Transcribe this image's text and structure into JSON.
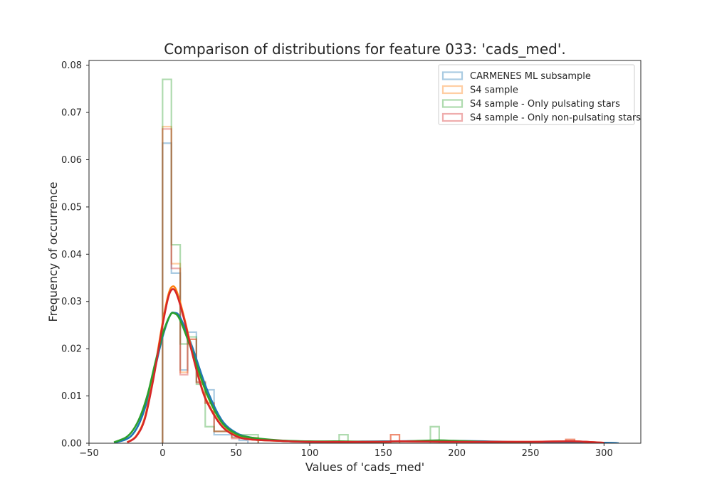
{
  "chart_data": {
    "type": "histogram",
    "title": "Comparison of distributions for feature 033: 'cads_med'.",
    "xlabel": "Values of 'cads_med'",
    "ylabel": "Frequency of occurrence",
    "xlim": [
      -50,
      325
    ],
    "ylim": [
      0,
      0.081
    ],
    "xticks": [
      -50,
      0,
      50,
      100,
      150,
      200,
      250,
      300
    ],
    "yticks": [
      0.0,
      0.01,
      0.02,
      0.03,
      0.04,
      0.05,
      0.06,
      0.07,
      0.08
    ],
    "ytick_labels": [
      "0.00",
      "0.01",
      "0.02",
      "0.03",
      "0.04",
      "0.05",
      "0.06",
      "0.07",
      "0.08"
    ],
    "grid": false,
    "legend_position": "upper right",
    "series": [
      {
        "name": "CARMENES ML subsample",
        "color": "#1f77b4",
        "bins": [
          {
            "x0": 0,
            "x1": 6,
            "y": 0.0635
          },
          {
            "x0": 6,
            "x1": 12,
            "y": 0.036
          },
          {
            "x0": 12,
            "x1": 17,
            "y": 0.0155
          },
          {
            "x0": 17,
            "x1": 23,
            "y": 0.0235
          },
          {
            "x0": 23,
            "x1": 29,
            "y": 0.013
          },
          {
            "x0": 29,
            "x1": 35,
            "y": 0.0113
          },
          {
            "x0": 35,
            "x1": 47,
            "y": 0.0018
          },
          {
            "x0": 47,
            "x1": 52,
            "y": 0.0013
          },
          {
            "x0": 52,
            "x1": 58,
            "y": 0.0006
          }
        ],
        "kde": {
          "x": [
            -33,
            -25,
            -20,
            -15,
            -10,
            -5,
            0,
            5,
            8,
            12,
            20,
            30,
            40,
            50,
            60,
            75,
            100,
            150,
            200,
            250,
            300,
            310
          ],
          "y": [
            0.0001,
            0.0008,
            0.002,
            0.0048,
            0.0095,
            0.016,
            0.0225,
            0.027,
            0.0276,
            0.0266,
            0.0205,
            0.0115,
            0.005,
            0.0022,
            0.0012,
            0.0006,
            0.0003,
            0.0004,
            0.0005,
            0.0002,
            0.0001,
            0.0
          ]
        }
      },
      {
        "name": "S4 sample",
        "color": "#ff7f0e",
        "bins": [
          {
            "x0": 0,
            "x1": 6,
            "y": 0.067
          },
          {
            "x0": 6,
            "x1": 12,
            "y": 0.038
          },
          {
            "x0": 12,
            "x1": 17,
            "y": 0.015
          },
          {
            "x0": 17,
            "x1": 23,
            "y": 0.022
          },
          {
            "x0": 23,
            "x1": 29,
            "y": 0.013
          },
          {
            "x0": 29,
            "x1": 35,
            "y": 0.0085
          },
          {
            "x0": 35,
            "x1": 47,
            "y": 0.0025
          },
          {
            "x0": 47,
            "x1": 65,
            "y": 0.0012
          },
          {
            "x0": 155,
            "x1": 161,
            "y": 0.0018
          },
          {
            "x0": 274,
            "x1": 280,
            "y": 0.0008
          }
        ],
        "kde": {
          "x": [
            -24,
            -18,
            -12,
            -6,
            0,
            4,
            7,
            10,
            15,
            20,
            25,
            30,
            40,
            50,
            60,
            80,
            100,
            150,
            160,
            200,
            250,
            278,
            300
          ],
          "y": [
            0.0002,
            0.0015,
            0.0055,
            0.0145,
            0.0255,
            0.0315,
            0.0332,
            0.0318,
            0.0262,
            0.0195,
            0.0135,
            0.009,
            0.0038,
            0.0016,
            0.0008,
            0.0005,
            0.0003,
            0.0003,
            0.0004,
            0.0003,
            0.0003,
            0.0004,
            0.0001
          ]
        }
      },
      {
        "name": "S4 sample - Only pulsating stars",
        "color": "#2ca02c",
        "bins": [
          {
            "x0": 0,
            "x1": 6,
            "y": 0.077
          },
          {
            "x0": 6,
            "x1": 12,
            "y": 0.042
          },
          {
            "x0": 12,
            "x1": 17,
            "y": 0.021
          },
          {
            "x0": 17,
            "x1": 23,
            "y": 0.0225
          },
          {
            "x0": 23,
            "x1": 29,
            "y": 0.0125
          },
          {
            "x0": 29,
            "x1": 35,
            "y": 0.0035
          },
          {
            "x0": 35,
            "x1": 47,
            "y": 0.0025
          },
          {
            "x0": 47,
            "x1": 65,
            "y": 0.0018
          },
          {
            "x0": 120,
            "x1": 126,
            "y": 0.0018
          },
          {
            "x0": 182,
            "x1": 188,
            "y": 0.0035
          }
        ],
        "kde": {
          "x": [
            -33,
            -25,
            -20,
            -15,
            -10,
            -5,
            0,
            5,
            8,
            12,
            20,
            30,
            40,
            50,
            60,
            80,
            100,
            120,
            150,
            185,
            200,
            230,
            250
          ],
          "y": [
            0.0002,
            0.0012,
            0.0028,
            0.0058,
            0.0105,
            0.017,
            0.023,
            0.027,
            0.0275,
            0.026,
            0.0195,
            0.0105,
            0.0045,
            0.002,
            0.0012,
            0.0006,
            0.0004,
            0.0004,
            0.0003,
            0.0006,
            0.0005,
            0.0002,
            0.0001
          ]
        }
      },
      {
        "name": "S4 sample - Only non-pulsating stars",
        "color": "#d62728",
        "bins": [
          {
            "x0": 0,
            "x1": 6,
            "y": 0.0665
          },
          {
            "x0": 6,
            "x1": 12,
            "y": 0.037
          },
          {
            "x0": 12,
            "x1": 17,
            "y": 0.0145
          },
          {
            "x0": 17,
            "x1": 23,
            "y": 0.022
          },
          {
            "x0": 23,
            "x1": 29,
            "y": 0.0128
          },
          {
            "x0": 29,
            "x1": 35,
            "y": 0.0085
          },
          {
            "x0": 35,
            "x1": 47,
            "y": 0.0025
          },
          {
            "x0": 47,
            "x1": 65,
            "y": 0.001
          },
          {
            "x0": 155,
            "x1": 161,
            "y": 0.0018
          },
          {
            "x0": 274,
            "x1": 280,
            "y": 0.0008
          }
        ],
        "kde": {
          "x": [
            -24,
            -18,
            -12,
            -6,
            0,
            4,
            7,
            10,
            15,
            20,
            25,
            30,
            40,
            50,
            60,
            80,
            100,
            150,
            160,
            200,
            250,
            278,
            300
          ],
          "y": [
            0.0002,
            0.0014,
            0.0052,
            0.014,
            0.025,
            0.031,
            0.0326,
            0.0312,
            0.0258,
            0.0192,
            0.0133,
            0.0088,
            0.0037,
            0.0015,
            0.0008,
            0.0005,
            0.0003,
            0.0003,
            0.0004,
            0.0003,
            0.0003,
            0.0004,
            0.0001
          ]
        }
      }
    ]
  }
}
